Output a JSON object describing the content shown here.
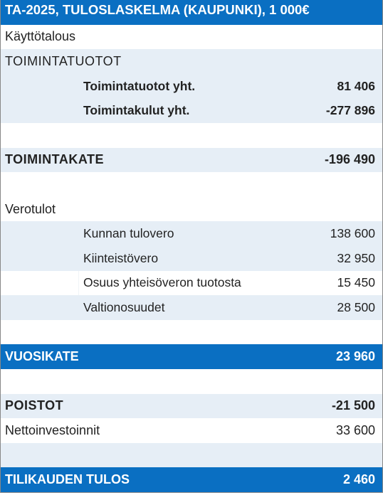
{
  "colors": {
    "header_bg": "#0a6fc2",
    "header_fg": "#ffffff",
    "shade_bg": "#e6eef6",
    "plain_bg": "#ffffff",
    "text": "#222222",
    "border": "#888888"
  },
  "title": "TA-2025, TULOSLASKELMA (KAUPUNKI), 1 000€",
  "kayttotalous": "Käyttötalous",
  "toimintatuotot_heading": "TOIMINTATUOTOT",
  "toimintatuotot_yht": {
    "label": "Toimintatuotot yht.",
    "value": "81 406"
  },
  "toimintakulut_yht": {
    "label": "Toimintakulut yht.",
    "value": "-277 896"
  },
  "toimintakate": {
    "label": "TOIMINTAKATE",
    "value": "-196 490"
  },
  "verotulot_heading": "Verotulot",
  "verotulot": [
    {
      "label": "Kunnan tulovero",
      "value": "138 600"
    },
    {
      "label": "Kiinteistövero",
      "value": "32 950"
    },
    {
      "label": "Osuus yhteisöveron tuotosta",
      "value": "15 450"
    },
    {
      "label": "Valtionosuudet",
      "value": "28 500"
    }
  ],
  "vuosikate": {
    "label": "VUOSIKATE",
    "value": "23 960"
  },
  "poistot": {
    "label": "POISTOT",
    "value": "-21 500"
  },
  "nettoinvestoinnit": {
    "label": "Nettoinvestoinnit",
    "value": "33 600"
  },
  "tilikauden_tulos": {
    "label": "TILIKAUDEN TULOS",
    "value": "2 460"
  }
}
